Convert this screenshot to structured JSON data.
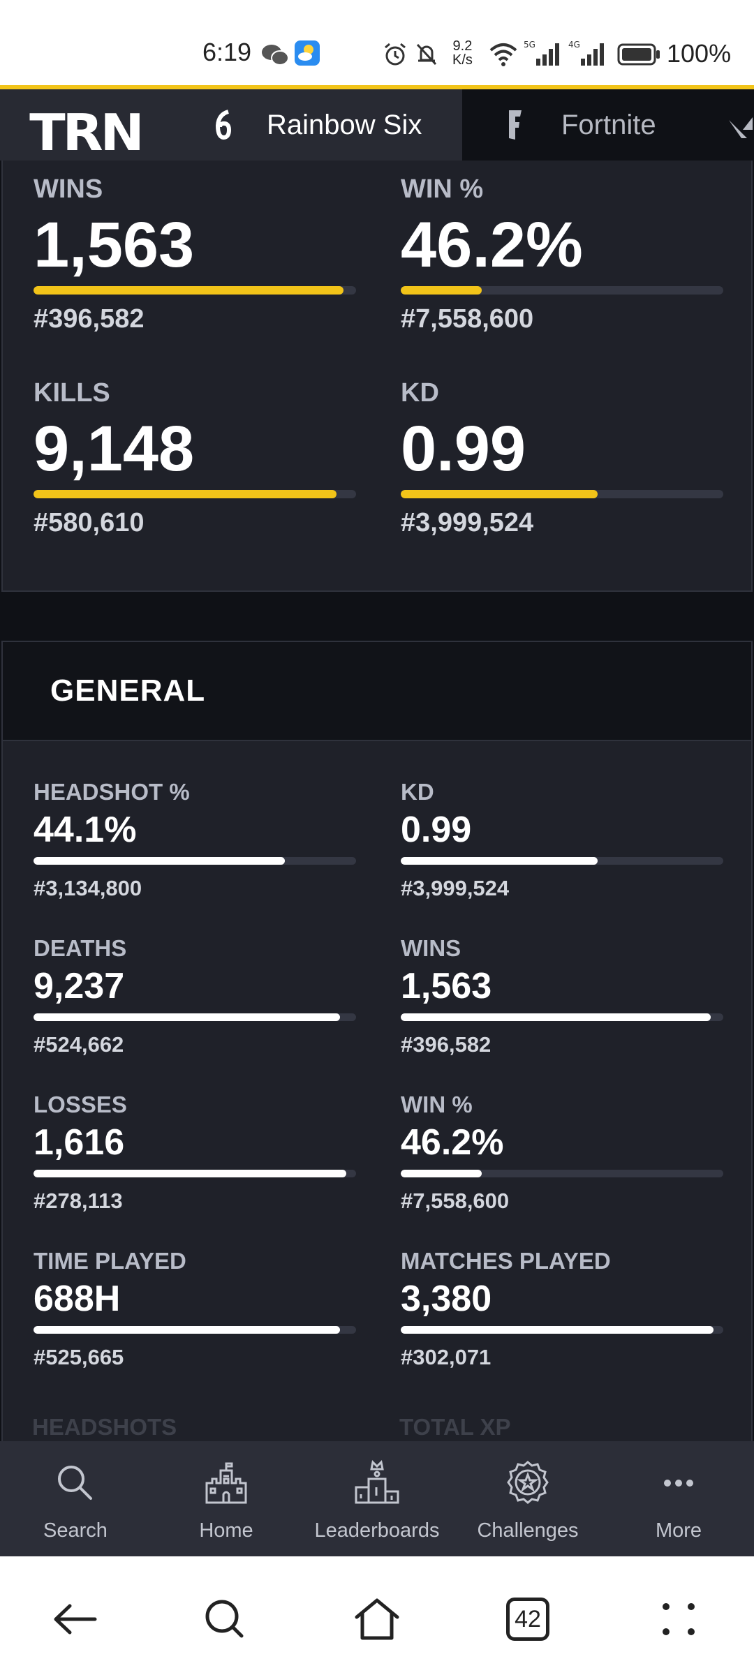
{
  "status_bar": {
    "time": "6:19",
    "network_speed_value": "9.2",
    "network_speed_unit": "K/s",
    "battery_percent": "100%",
    "icons": [
      "wechat-icon",
      "weather-icon",
      "alarm-icon",
      "mute-icon",
      "wifi-icon",
      "signal-5g-icon",
      "signal-4g-icon",
      "battery-icon"
    ]
  },
  "top_nav": {
    "logo": "TRN",
    "tabs": [
      {
        "label": "Rainbow Six",
        "icon": "rainbow-six-icon",
        "active": true
      },
      {
        "label": "Fortnite",
        "icon": "fortnite-icon",
        "active": false
      }
    ]
  },
  "overview_stats": [
    {
      "label": "WINS",
      "value": "1,563",
      "rank": "#396,582",
      "percentile_fill": 0.96
    },
    {
      "label": "WIN %",
      "value": "46.2%",
      "rank": "#7,558,600",
      "percentile_fill": 0.25
    },
    {
      "label": "KILLS",
      "value": "9,148",
      "rank": "#580,610",
      "percentile_fill": 0.94
    },
    {
      "label": "KD",
      "value": "0.99",
      "rank": "#3,999,524",
      "percentile_fill": 0.61
    }
  ],
  "general": {
    "title": "GENERAL",
    "stats": [
      {
        "label": "HEADSHOT %",
        "value": "44.1%",
        "rank": "#3,134,800",
        "percentile_fill": 0.78
      },
      {
        "label": "KD",
        "value": "0.99",
        "rank": "#3,999,524",
        "percentile_fill": 0.61
      },
      {
        "label": "DEATHS",
        "value": "9,237",
        "rank": "#524,662",
        "percentile_fill": 0.95
      },
      {
        "label": "WINS",
        "value": "1,563",
        "rank": "#396,582",
        "percentile_fill": 0.96
      },
      {
        "label": "LOSSES",
        "value": "1,616",
        "rank": "#278,113",
        "percentile_fill": 0.97
      },
      {
        "label": "WIN %",
        "value": "46.2%",
        "rank": "#7,558,600",
        "percentile_fill": 0.25
      },
      {
        "label": "TIME PLAYED",
        "value": "688H",
        "rank": "#525,665",
        "percentile_fill": 0.95
      },
      {
        "label": "MATCHES PLAYED",
        "value": "3,380",
        "rank": "#302,071",
        "percentile_fill": 0.97
      }
    ],
    "next_labels": [
      "HEADSHOTS",
      "TOTAL XP"
    ]
  },
  "app_nav": [
    {
      "label": "Search",
      "icon": "search-icon"
    },
    {
      "label": "Home",
      "icon": "castle-icon"
    },
    {
      "label": "Leaderboards",
      "icon": "podium-icon"
    },
    {
      "label": "Challenges",
      "icon": "badge-icon"
    },
    {
      "label": "More",
      "icon": "more-dots-icon"
    }
  ],
  "system_nav": {
    "tab_count": "42"
  },
  "colors": {
    "accent": "#f2c419",
    "card_bg": "#1f2129",
    "page_bg": "#0f1116",
    "nav_bg": "#2c2e38"
  }
}
